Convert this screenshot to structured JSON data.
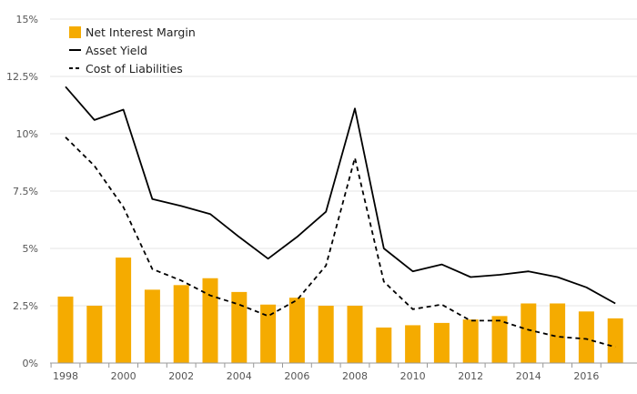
{
  "chart_data": {
    "type": "bar",
    "x": [
      1998,
      1999,
      2000,
      2001,
      2002,
      2003,
      2004,
      2005,
      2006,
      2007,
      2008,
      2009,
      2010,
      2011,
      2012,
      2013,
      2014,
      2015,
      2016,
      2017
    ],
    "x_tick_labels": [
      "1998",
      "2000",
      "2002",
      "2004",
      "2006",
      "2008",
      "2010",
      "2012",
      "2014",
      "2016"
    ],
    "ylim": [
      0,
      15
    ],
    "y_ticks": [
      0,
      2.5,
      5,
      7.5,
      10,
      12.5,
      15
    ],
    "y_tick_labels": [
      "0%",
      "2.5%",
      "5%",
      "7.5%",
      "10%",
      "12.5%",
      "15%"
    ],
    "grid": true,
    "legend_position": "top-left",
    "series": [
      {
        "name": "Net Interest Margin",
        "type": "bar",
        "color": "#f5ab00",
        "values": [
          2.9,
          2.5,
          4.6,
          3.2,
          3.4,
          3.7,
          3.1,
          2.55,
          2.85,
          2.5,
          2.5,
          1.55,
          1.65,
          1.75,
          1.9,
          2.05,
          2.6,
          2.6,
          2.25,
          1.95
        ]
      },
      {
        "name": "Asset Yield",
        "type": "line",
        "style": "solid",
        "color": "#000000",
        "values": [
          12.05,
          10.6,
          11.05,
          7.15,
          6.85,
          6.5,
          5.5,
          4.55,
          5.5,
          6.6,
          11.1,
          5.0,
          4.0,
          4.3,
          3.75,
          3.85,
          4.0,
          3.75,
          3.3,
          2.6
        ]
      },
      {
        "name": "Cost of Liabilities",
        "type": "line",
        "style": "dashed",
        "color": "#000000",
        "values": [
          9.85,
          8.6,
          6.8,
          4.1,
          3.6,
          2.95,
          2.55,
          2.05,
          2.75,
          4.25,
          8.95,
          3.55,
          2.35,
          2.55,
          1.85,
          1.85,
          1.45,
          1.15,
          1.05,
          0.7
        ]
      }
    ]
  }
}
